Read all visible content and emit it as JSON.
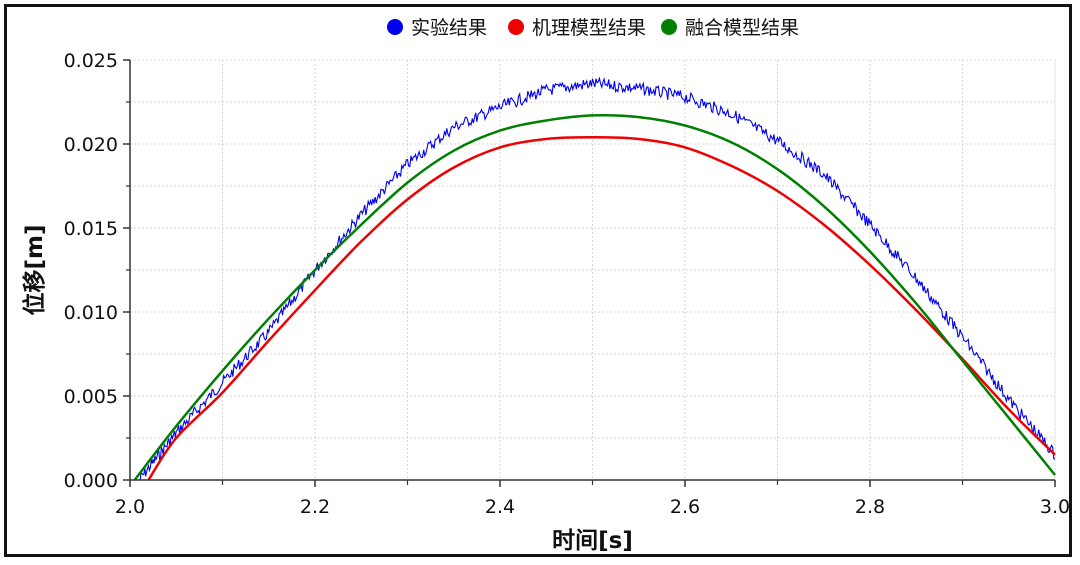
{
  "chart_data": {
    "type": "line",
    "xlabel": "时间[s]",
    "ylabel": "位移[m]",
    "xlim": [
      2.0,
      3.0
    ],
    "ylim": [
      0.0,
      0.025
    ],
    "x_ticks": [
      "2.0",
      "2.2",
      "2.4",
      "2.6",
      "2.8",
      "3.0"
    ],
    "y_ticks": [
      "0.000",
      "0.005",
      "0.010",
      "0.015",
      "0.020",
      "0.025"
    ],
    "grid": true,
    "legend_position": "top-center",
    "series": [
      {
        "name": "实验结果",
        "color": "#0000ee",
        "x": [
          2.01,
          2.05,
          2.1,
          2.15,
          2.2,
          2.25,
          2.3,
          2.35,
          2.4,
          2.45,
          2.5,
          2.55,
          2.6,
          2.65,
          2.7,
          2.75,
          2.8,
          2.85,
          2.9,
          2.95,
          3.0
        ],
        "y": [
          0.0,
          0.0028,
          0.0058,
          0.0088,
          0.0125,
          0.0158,
          0.0188,
          0.021,
          0.0222,
          0.0232,
          0.0236,
          0.0233,
          0.0228,
          0.0218,
          0.0202,
          0.0182,
          0.0152,
          0.012,
          0.0085,
          0.0048,
          0.0015
        ]
      },
      {
        "name": "机理模型结果",
        "color": "#ee0000",
        "x": [
          2.02,
          2.05,
          2.1,
          2.15,
          2.2,
          2.25,
          2.3,
          2.35,
          2.4,
          2.45,
          2.5,
          2.55,
          2.6,
          2.65,
          2.7,
          2.75,
          2.8,
          2.85,
          2.9,
          2.95,
          3.0
        ],
        "y": [
          0.0,
          0.0025,
          0.0052,
          0.0083,
          0.0113,
          0.0142,
          0.0167,
          0.0186,
          0.0198,
          0.0203,
          0.0204,
          0.0203,
          0.0198,
          0.0187,
          0.0172,
          0.0152,
          0.0128,
          0.0101,
          0.0072,
          0.0042,
          0.0015
        ]
      },
      {
        "name": "融合模型结果",
        "color": "#008000",
        "x": [
          2.005,
          2.05,
          2.1,
          2.15,
          2.2,
          2.25,
          2.3,
          2.35,
          2.4,
          2.45,
          2.5,
          2.55,
          2.6,
          2.65,
          2.7,
          2.75,
          2.8,
          2.85,
          2.9,
          2.95,
          3.0
        ],
        "y": [
          0.0,
          0.0032,
          0.0065,
          0.0096,
          0.0125,
          0.0152,
          0.0177,
          0.0196,
          0.0208,
          0.0214,
          0.0217,
          0.0216,
          0.0211,
          0.0201,
          0.0185,
          0.0163,
          0.0136,
          0.0105,
          0.0071,
          0.0037,
          0.0003
        ]
      }
    ]
  }
}
